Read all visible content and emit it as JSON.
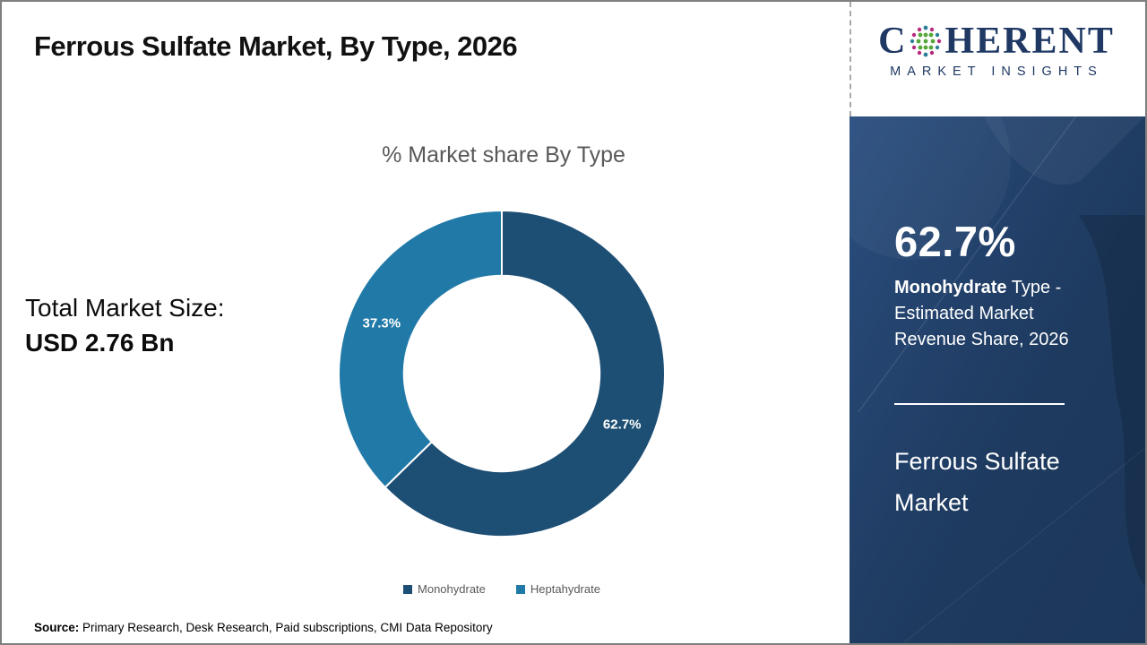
{
  "header": {
    "title": "Ferrous Sulfate Market,  By Type, 2026",
    "logo": {
      "word_start": "C",
      "word_end": "HERENT",
      "subtitle": "MARKET INSIGHTS",
      "globe_icon": "dotted-globe"
    }
  },
  "left_panel": {
    "label": "Total Market Size:",
    "value": "USD 2.76 Bn"
  },
  "chart_data": {
    "type": "pie",
    "subtype": "donut",
    "title": "% Market share  By Type",
    "categories": [
      "Monohydrate",
      "Heptahydrate"
    ],
    "values": [
      62.7,
      37.3
    ],
    "data_labels": [
      "62.7%",
      "37.3%"
    ],
    "colors": [
      "#1d4e74",
      "#2179a8"
    ],
    "start_angle_deg": 0,
    "direction": "clockwise",
    "inner_radius_ratio": 0.6,
    "legend_position": "bottom"
  },
  "sidebar": {
    "stat_value": "62.7%",
    "stat_label_bold": "Monohydrate",
    "stat_label_rest": " Type - Estimated Market Revenue Share, 2026",
    "product_name": "Ferrous Sulfate Market"
  },
  "footer": {
    "source_label": "Source:",
    "source_text": " Primary Research, Desk Research, Paid subscriptions, CMI Data Repository"
  },
  "colors": {
    "accent-dark": "#1d4e74",
    "accent-light": "#2179a8",
    "navy": "#1f3864",
    "sidebar-bg": "#1e3a5f",
    "text-gray": "#595959",
    "border-gray": "#7e7e7e",
    "logo-green": "#56a739",
    "logo-magenta": "#b62a7d",
    "logo-teal": "#2e7f96"
  }
}
